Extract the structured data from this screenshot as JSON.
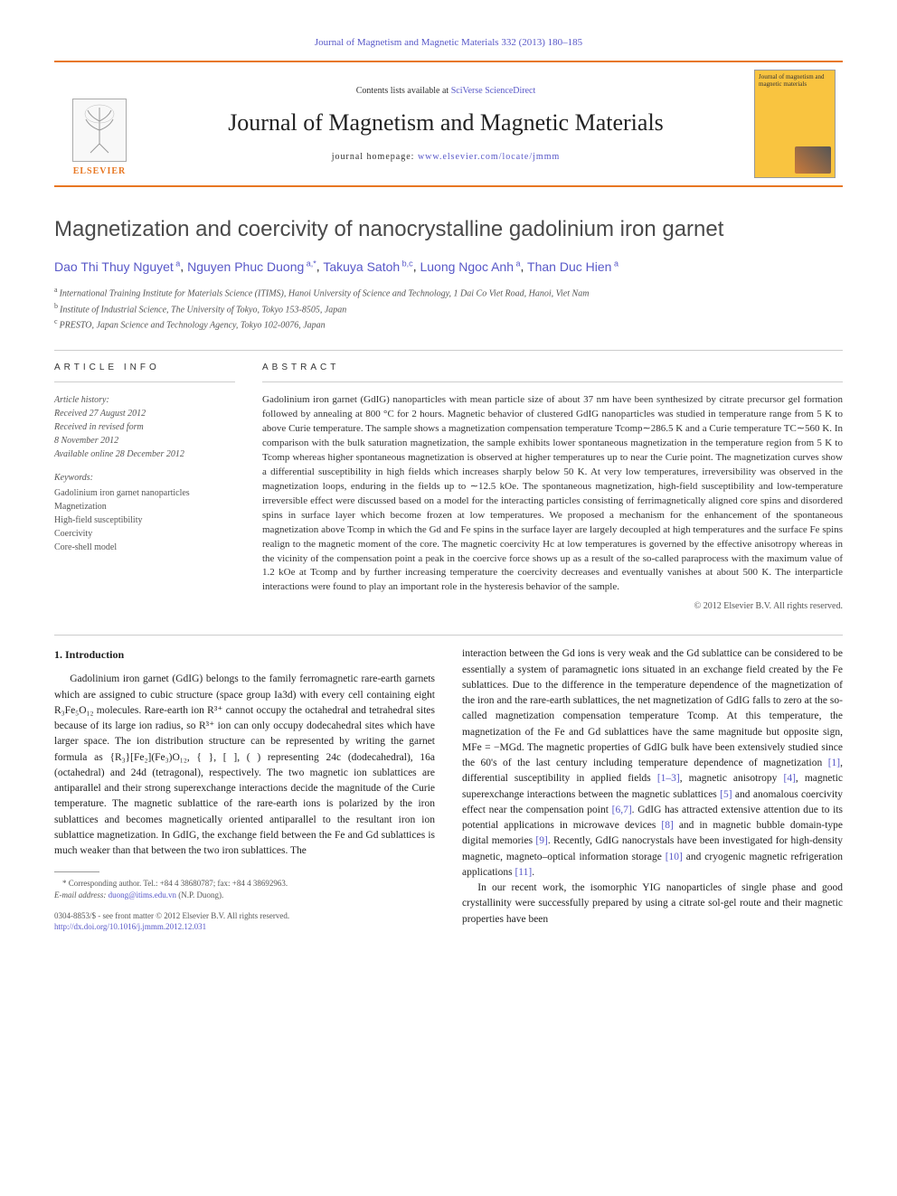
{
  "top_link": "Journal of Magnetism and Magnetic Materials 332 (2013) 180–185",
  "masthead": {
    "contents_prefix": "Contents lists available at ",
    "contents_link": "SciVerse ScienceDirect",
    "journal_name": "Journal of Magnetism and Magnetic Materials",
    "homepage_prefix": "journal homepage: ",
    "homepage_link": "www.elsevier.com/locate/jmmm",
    "elsevier_label": "ELSEVIER",
    "cover_title": "Journal of magnetism and magnetic materials"
  },
  "article": {
    "title": "Magnetization and coercivity of nanocrystalline gadolinium iron garnet",
    "authors": [
      {
        "name": "Dao Thi Thuy Nguyet",
        "sup": "a"
      },
      {
        "name": "Nguyen Phuc Duong",
        "sup": "a,*"
      },
      {
        "name": "Takuya Satoh",
        "sup": "b,c"
      },
      {
        "name": "Luong Ngoc Anh",
        "sup": "a"
      },
      {
        "name": "Than Duc Hien",
        "sup": "a"
      }
    ],
    "affiliations": [
      {
        "sup": "a",
        "text": "International Training Institute for Materials Science (ITIMS), Hanoi University of Science and Technology, 1 Dai Co Viet Road, Hanoi, Viet Nam"
      },
      {
        "sup": "b",
        "text": "Institute of Industrial Science, The University of Tokyo, Tokyo 153-8505, Japan"
      },
      {
        "sup": "c",
        "text": "PRESTO, Japan Science and Technology Agency, Tokyo 102-0076, Japan"
      }
    ]
  },
  "info": {
    "head": "ARTICLE INFO",
    "history_head": "Article history:",
    "history": [
      "Received 27 August 2012",
      "Received in revised form",
      "8 November 2012",
      "Available online 28 December 2012"
    ],
    "keywords_head": "Keywords:",
    "keywords": [
      "Gadolinium iron garnet nanoparticles",
      "Magnetization",
      "High-field susceptibility",
      "Coercivity",
      "Core-shell model"
    ]
  },
  "abstract": {
    "head": "ABSTRACT",
    "text": "Gadolinium iron garnet (GdIG) nanoparticles with mean particle size of about 37 nm have been synthesized by citrate precursor gel formation followed by annealing at 800 °C for 2 hours. Magnetic behavior of clustered GdIG nanoparticles was studied in temperature range from 5 K to above Curie temperature. The sample shows a magnetization compensation temperature Tcomp∼286.5 K and a Curie temperature TC∼560 K. In comparison with the bulk saturation magnetization, the sample exhibits lower spontaneous magnetization in the temperature region from 5 K to Tcomp whereas higher spontaneous magnetization is observed at higher temperatures up to near the Curie point. The magnetization curves show a differential susceptibility in high fields which increases sharply below 50 K. At very low temperatures, irreversibility was observed in the magnetization loops, enduring in the fields up to ∼12.5 kOe. The spontaneous magnetization, high-field susceptibility and low-temperature irreversible effect were discussed based on a model for the interacting particles consisting of ferrimagnetically aligned core spins and disordered spins in surface layer which become frozen at low temperatures. We proposed a mechanism for the enhancement of the spontaneous magnetization above Tcomp in which the Gd and Fe spins in the surface layer are largely decoupled at high temperatures and the surface Fe spins realign to the magnetic moment of the core. The magnetic coercivity Hc at low temperatures is governed by the effective anisotropy whereas in the vicinity of the compensation point a peak in the coercive force shows up as a result of the so-called paraprocess with the maximum value of 1.2 kOe at Tcomp and by further increasing temperature the coercivity decreases and eventually vanishes at about 500 K. The interparticle interactions were found to play an important role in the hysteresis behavior of the sample.",
    "copyright": "© 2012 Elsevier B.V. All rights reserved."
  },
  "body": {
    "section1_head": "1.  Introduction",
    "col1_p1": "Gadolinium iron garnet (GdIG) belongs to the family ferromagnetic rare-earth garnets which are assigned to cubic structure (space group Ia3d) with every cell containing eight R₃Fe₅O₁₂ molecules. Rare-earth ion R³⁺ cannot occupy the octahedral and tetrahedral sites because of its large ion radius, so R³⁺ ion can only occupy dodecahedral sites which have larger space. The ion distribution structure can be represented by writing the garnet formula as {R₃}[Fe₂](Fe₃)O₁₂, { }, [ ], ( ) representing 24c (dodecahedral), 16a (octahedral) and 24d (tetragonal), respectively. The two magnetic ion sublattices are antiparallel and their strong superexchange interactions decide the magnitude of the Curie temperature. The magnetic sublattice of the rare-earth ions is polarized by the iron sublattices and becomes magnetically oriented antiparallel to the resultant iron ion sublattice magnetization. In GdIG, the exchange field between the Fe and Gd sublattices is much weaker than that between the two iron sublattices. The",
    "col2_p1_a": "interaction between the Gd ions is very weak and the Gd sublattice can be considered to be essentially a system of paramagnetic ions situated in an exchange field created by the Fe sublattices. Due to the difference in the temperature dependence of the magnetization of the iron and the rare-earth sublattices, the net magnetization of GdIG falls to zero at the so-called magnetization compensation temperature Tcomp. At this temperature, the magnetization of the Fe and Gd sublattices have the same magnitude but opposite sign, MFe = −MGd. The magnetic properties of GdIG bulk have been extensively studied since the 60's of the last century including temperature dependence of magnetization ",
    "col2_p1_refs": [
      {
        "text": "[1]",
        "after": ", differential susceptibility in applied fields "
      },
      {
        "text": "[1–3]",
        "after": ", magnetic anisotropy "
      },
      {
        "text": "[4]",
        "after": ", magnetic superexchange interactions between the magnetic sublattices "
      },
      {
        "text": "[5]",
        "after": " and anomalous coercivity effect near the compensation point "
      },
      {
        "text": "[6,7]",
        "after": ". GdIG has attracted extensive attention due to its potential applications in microwave devices "
      },
      {
        "text": "[8]",
        "after": " and in magnetic bubble domain-type digital memories "
      },
      {
        "text": "[9]",
        "after": ". Recently, GdIG nanocrystals have been investigated for high-density magnetic, magneto–optical information storage "
      },
      {
        "text": "[10]",
        "after": " and cryogenic magnetic refrigeration applications "
      },
      {
        "text": "[11]",
        "after": "."
      }
    ],
    "col2_p2": "In our recent work, the isomorphic YIG nanoparticles of single phase and good crystallinity were successfully prepared by using a citrate sol-gel route and their magnetic properties have been"
  },
  "footnote": {
    "corr": "* Corresponding author. Tel.: +84 4 38680787; fax: +84 4 38692963.",
    "email_label": "E-mail address:",
    "email": "duong@itims.edu.vn",
    "email_name": "(N.P. Duong)."
  },
  "doi": {
    "line1": "0304-8853/$ - see front matter © 2012 Elsevier B.V. All rights reserved.",
    "line2": "http://dx.doi.org/10.1016/j.jmmm.2012.12.031"
  },
  "colors": {
    "accent_orange": "#e87722",
    "link_blue": "#5858c8",
    "text_dark": "#222222",
    "text_grey": "#555555",
    "cover_yellow": "#f9c440"
  }
}
